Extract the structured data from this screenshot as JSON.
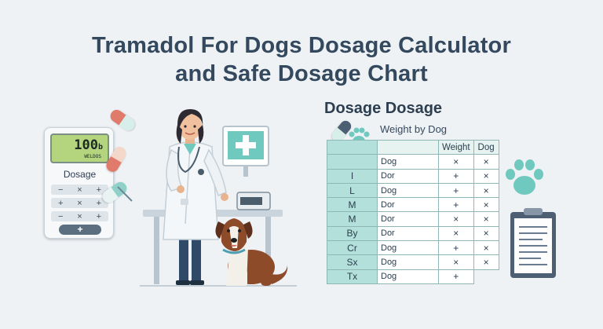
{
  "title": {
    "line1": "Tramadol For Dogs Dosage Calculator",
    "line2": "and Safe Dosage Chart"
  },
  "calculator": {
    "screen_value": "100",
    "screen_unit": "b",
    "screen_sub": "WELDOS",
    "label": "Dosage",
    "rows": [
      [
        "−",
        "×",
        "+"
      ],
      [
        "+",
        "×",
        "+"
      ],
      [
        "−",
        "×",
        "+"
      ]
    ],
    "button": "+"
  },
  "chart": {
    "heading": "Dosage Dosage",
    "subheading": "Weight by Dog",
    "headers": [
      "",
      "",
      "Weight",
      "Dog"
    ],
    "rows": [
      [
        "",
        "Dog",
        "×",
        "×"
      ],
      [
        "I",
        "Dor",
        "+",
        "×"
      ],
      [
        "L",
        "Dog",
        "+",
        "×"
      ],
      [
        "M",
        "Dor",
        "+",
        "×"
      ],
      [
        "M",
        "Dor",
        "×",
        "×"
      ],
      [
        "By",
        "Dor",
        "×",
        "×"
      ],
      [
        "Cr",
        "Dog",
        "+",
        "×"
      ],
      [
        "Sx",
        "Dog",
        "×",
        "×"
      ],
      [
        "Tx",
        "Dog",
        "+",
        ""
      ]
    ]
  },
  "icons": {
    "vet": "veterinarian-illustration",
    "dog": "dog-illustration",
    "monitor": "medical-cross-monitor",
    "paw": "paw-print-icon",
    "clipboard": "clipboard-icon",
    "pill": "capsule-icon"
  },
  "colors": {
    "title": "#34495e",
    "teal": "#5bbfb5",
    "pill_red": "#e07a6b",
    "pill_teal": "#8fd1c8"
  }
}
